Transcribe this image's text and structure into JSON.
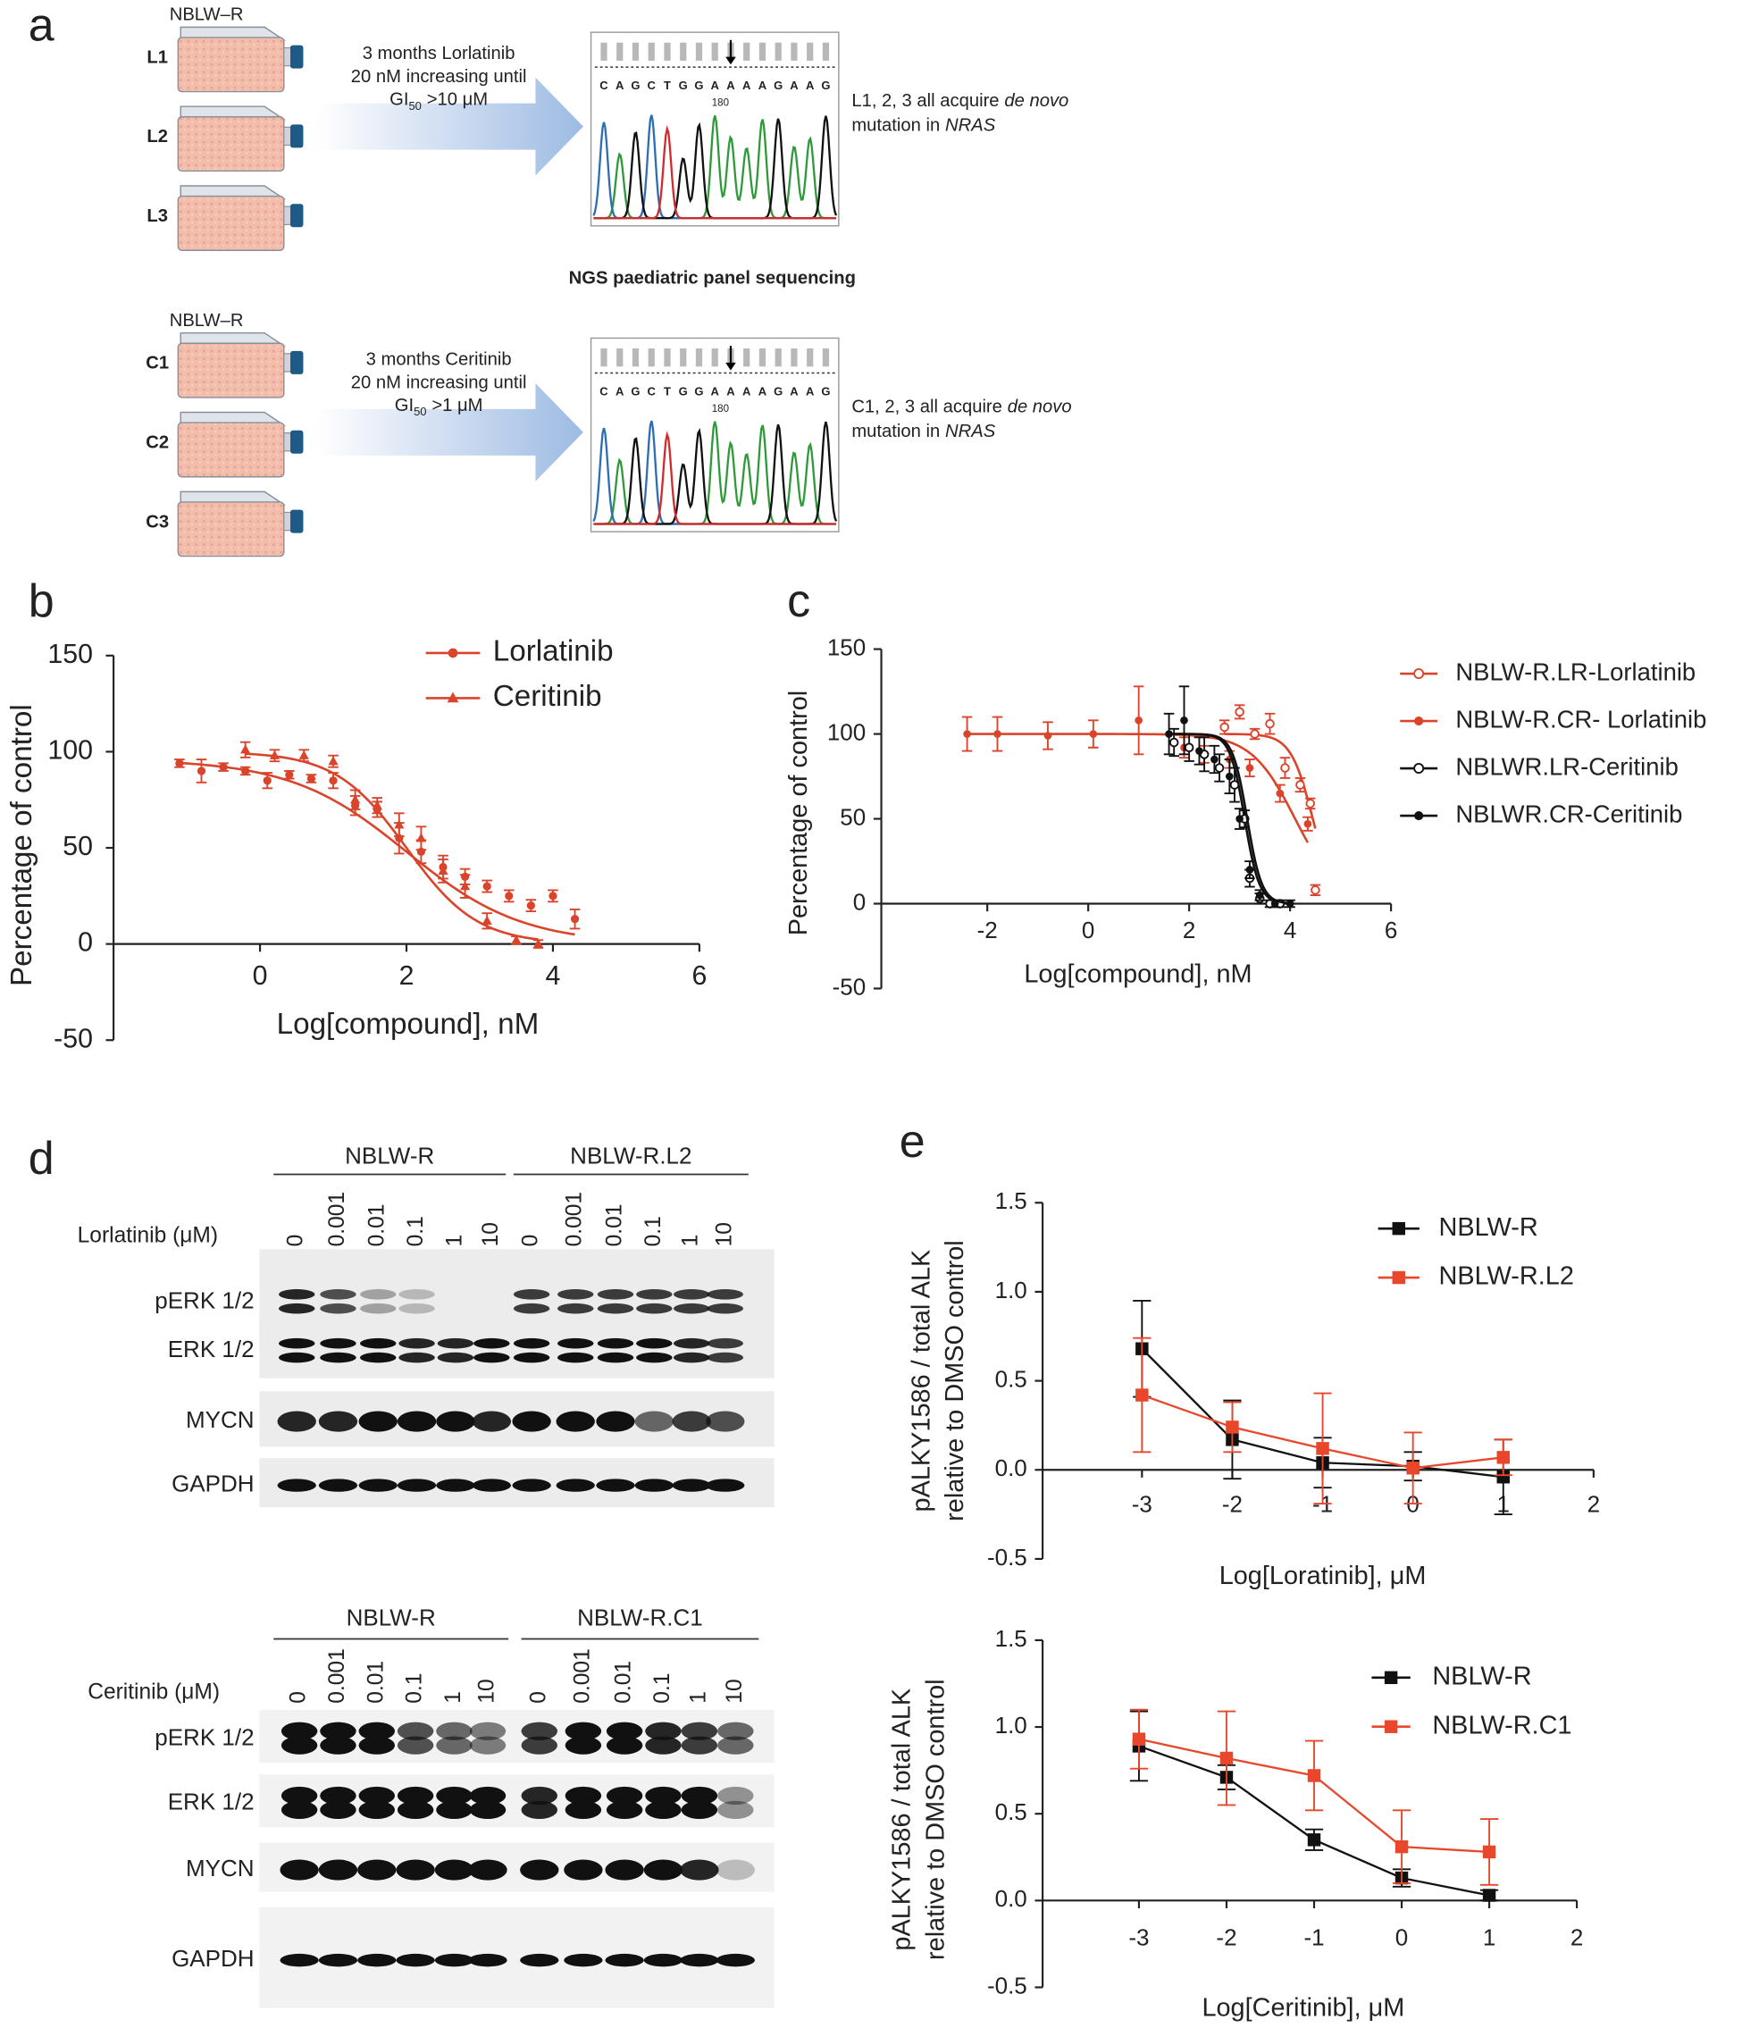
{
  "panel_labels": [
    "a",
    "b",
    "c",
    "d",
    "e"
  ],
  "panel_a": {
    "sequencing_title": "NGS paediatric panel sequencing",
    "rows": [
      {
        "cell_line": "NBLW–R",
        "flasks": [
          "L1",
          "L2",
          "L3"
        ],
        "treatment": [
          "3 months Lorlatinib",
          "20 nM increasing until"
        ],
        "gi": {
          "text": "GI",
          "subscript": "50",
          "threshold": ">10 μM"
        },
        "sequence": [
          "C",
          "A",
          "G",
          "C",
          "T",
          "G",
          "G",
          "A",
          "A",
          "A",
          "A",
          "G",
          "A",
          "A",
          "G"
        ],
        "position_label": "180",
        "result": [
          [
            "L1, 2, 3 all acquire",
            "de novo"
          ],
          [
            "mutation in",
            "NRAS"
          ]
        ]
      },
      {
        "cell_line": "NBLW–R",
        "flasks": [
          "C1",
          "C2",
          "C3"
        ],
        "treatment": [
          "3 months Ceritinib",
          "20 nM increasing until"
        ],
        "gi": {
          "text": "GI",
          "subscript": "50",
          "threshold": ">1 μM"
        },
        "sequence": [
          "C",
          "A",
          "G",
          "C",
          "T",
          "G",
          "G",
          "A",
          "A",
          "A",
          "A",
          "G",
          "A",
          "A",
          "G"
        ],
        "position_label": "180",
        "result": [
          [
            "C1, 2, 3 all acquire",
            "de novo"
          ],
          [
            "mutation in",
            "NRAS"
          ]
        ]
      }
    ]
  },
  "chart_data": [
    {
      "type": "dose-response",
      "xlabel": "Log[compound], nM",
      "ylabel": [
        "Percentage of control"
      ],
      "xlim": [
        -2,
        6
      ],
      "ylim": [
        -50,
        150
      ],
      "xticks": [
        0,
        2,
        4,
        6
      ],
      "yticks": [
        -50,
        0,
        50,
        100,
        150
      ],
      "series": [
        {
          "name": "Lorlatinib",
          "color": "#d9442b",
          "marker": "circle",
          "x": [
            -1.1,
            -0.8,
            -0.5,
            -0.2,
            0.1,
            0.4,
            0.7,
            1.0,
            1.3,
            1.6,
            1.9,
            2.2,
            2.5,
            2.8,
            3.1,
            3.4,
            3.7,
            4.0,
            4.3
          ],
          "values": [
            94,
            90,
            92,
            90,
            85,
            88,
            86,
            85,
            72,
            70,
            55,
            48,
            40,
            35,
            30,
            25,
            20,
            25,
            13
          ],
          "errors": [
            2,
            6,
            2,
            2,
            4,
            2,
            2,
            4,
            5,
            4,
            8,
            6,
            6,
            4,
            3,
            3,
            3,
            3,
            5
          ],
          "fit": {
            "top": 96,
            "bottom": 0,
            "logic50": 2.0,
            "hill": 0.55
          }
        },
        {
          "name": "Ceritinib",
          "color": "#d9442b",
          "marker": "triangle",
          "x": [
            -0.2,
            0.2,
            0.6,
            1.0,
            1.3,
            1.6,
            1.9,
            2.2,
            2.5,
            2.8,
            3.1,
            3.5,
            3.8
          ],
          "values": [
            101,
            98,
            98,
            95,
            75,
            72,
            62,
            55,
            38,
            30,
            12,
            2,
            0
          ],
          "errors": [
            4,
            3,
            3,
            3,
            5,
            4,
            6,
            6,
            6,
            6,
            4,
            2,
            2
          ],
          "fit": {
            "top": 100,
            "bottom": 0,
            "logic50": 2.0,
            "hill": 0.9
          }
        }
      ]
    },
    {
      "type": "dose-response",
      "xlabel": "Log[compound], nM",
      "ylabel": [
        "Percentage of control"
      ],
      "xlim": [
        -4.1,
        6
      ],
      "ylim": [
        -50,
        150
      ],
      "xticks": [
        -2,
        0,
        2,
        4,
        6
      ],
      "yticks": [
        -50,
        0,
        50,
        100,
        150
      ],
      "series": [
        {
          "name": "NBLW-R.LR-Lorlatinib",
          "color": "#d9442b",
          "marker": "open-circle",
          "x": [
            2.7,
            3.0,
            3.3,
            3.6,
            3.9,
            4.2,
            4.4,
            4.5
          ],
          "values": [
            104,
            113,
            100,
            106,
            80,
            70,
            59,
            8
          ],
          "errors": [
            4,
            4,
            3,
            6,
            6,
            4,
            3,
            3
          ],
          "fit": {
            "top": 100,
            "bottom": 0,
            "logic50": 4.45,
            "hill": 2.0
          }
        },
        {
          "name": "NBLW-R.CR- Lorlatinib",
          "color": "#d9442b",
          "marker": "circle",
          "x": [
            -2.4,
            -1.8,
            -0.8,
            0.1,
            1.0,
            1.9,
            2.3,
            2.8,
            3.2,
            3.8,
            4.35
          ],
          "values": [
            100,
            100,
            99,
            100,
            108,
            92,
            88,
            85,
            80,
            65,
            47
          ],
          "errors": [
            10,
            10,
            8,
            8,
            20,
            6,
            5,
            5,
            5,
            5,
            4
          ],
          "fit": {
            "top": 100,
            "bottom": 0,
            "logic50": 4.1,
            "hill": 1.0
          }
        },
        {
          "name": "NBLWR.LR-Ceritinib",
          "color": "#111111",
          "marker": "open-circle",
          "x": [
            1.7,
            2.0,
            2.3,
            2.6,
            2.9,
            3.1,
            3.2,
            3.4,
            3.6,
            3.8
          ],
          "values": [
            95,
            92,
            88,
            80,
            70,
            50,
            15,
            3,
            0,
            0
          ],
          "errors": [
            8,
            8,
            10,
            8,
            10,
            5,
            5,
            3,
            2,
            2
          ],
          "fit": {
            "top": 100,
            "bottom": 0,
            "logic50": 3.1,
            "hill": 3.0
          }
        },
        {
          "name": "NBLWR.CR-Ceritinib",
          "color": "#111111",
          "marker": "circle",
          "x": [
            1.6,
            1.9,
            2.2,
            2.5,
            2.8,
            3.0,
            3.2,
            3.4,
            3.7,
            4.0
          ],
          "values": [
            100,
            108,
            90,
            85,
            75,
            50,
            20,
            5,
            0,
            0
          ],
          "errors": [
            12,
            20,
            8,
            8,
            10,
            6,
            5,
            3,
            2,
            2
          ],
          "fit": {
            "top": 100,
            "bottom": 0,
            "logic50": 3.15,
            "hill": 3.0
          }
        }
      ]
    },
    {
      "type": "line",
      "xlabel": "Log[Loratinib], μM",
      "ylabel": [
        "pALKY1586 / total ALK",
        "relative to DMSO control"
      ],
      "xlim": [
        -4.1,
        2
      ],
      "ylim": [
        -0.5,
        1.5
      ],
      "xticks": [
        -3,
        -2,
        -1,
        0,
        1,
        2
      ],
      "yticks": [
        {
          "value": -0.5,
          "label": "-0.5"
        },
        {
          "value": 0,
          "label": "0.0"
        },
        {
          "value": 0.5,
          "label": "0.5"
        },
        {
          "value": 1,
          "label": "1.0"
        },
        {
          "value": 1.5,
          "label": "1.5"
        }
      ],
      "series": [
        {
          "name": "NBLW-R",
          "color": "#111111",
          "marker": "square",
          "x": [
            -3,
            -2,
            -1,
            0,
            1
          ],
          "values": [
            0.68,
            0.17,
            0.04,
            0.02,
            -0.04
          ],
          "errors": [
            0.27,
            0.22,
            0.14,
            0.08,
            0.21
          ]
        },
        {
          "name": "NBLW-R.L2",
          "color": "#e8472b",
          "marker": "square",
          "x": [
            -3,
            -2,
            -1,
            0,
            1
          ],
          "values": [
            0.42,
            0.24,
            0.12,
            0.01,
            0.07
          ],
          "errors": [
            0.32,
            0.14,
            0.31,
            0.2,
            0.1
          ]
        }
      ]
    },
    {
      "type": "line",
      "xlabel": "Log[Ceritinib], μM",
      "ylabel": [
        "pALKY1586 / total ALK",
        "relative to DMSO control"
      ],
      "xlim": [
        -4.1,
        2
      ],
      "ylim": [
        -0.5,
        1.5
      ],
      "xticks": [
        -3,
        -2,
        -1,
        0,
        1,
        2
      ],
      "yticks": [
        {
          "value": -0.5,
          "label": "-0.5"
        },
        {
          "value": 0,
          "label": "0.0"
        },
        {
          "value": 0.5,
          "label": "0.5"
        },
        {
          "value": 1,
          "label": "1.0"
        },
        {
          "value": 1.5,
          "label": "1.5"
        }
      ],
      "series": [
        {
          "name": "NBLW-R",
          "color": "#111111",
          "marker": "square",
          "x": [
            -3,
            -2,
            -1,
            0,
            1
          ],
          "values": [
            0.89,
            0.71,
            0.35,
            0.13,
            0.03
          ],
          "errors": [
            0.2,
            0.07,
            0.06,
            0.05,
            0.03
          ]
        },
        {
          "name": "NBLW-R.C1",
          "color": "#e8472b",
          "marker": "square",
          "x": [
            -3,
            -2,
            -1,
            0,
            1
          ],
          "values": [
            0.93,
            0.82,
            0.72,
            0.31,
            0.28
          ],
          "errors": [
            0.17,
            0.27,
            0.2,
            0.21,
            0.19
          ]
        }
      ]
    }
  ],
  "panel_d": {
    "blots": [
      {
        "groups": [
          "NBLW-R",
          "NBLW-R.L2"
        ],
        "treatment": "Lorlatinib (μM)",
        "concentrations": [
          "0",
          "0.001",
          "0.01",
          "0.1",
          "1",
          "10"
        ],
        "rows": [
          "pERK 1/2",
          "ERK 1/2",
          "MYCN",
          "GAPDH"
        ]
      },
      {
        "groups": [
          "NBLW-R",
          "NBLW-R.C1"
        ],
        "treatment": "Ceritinib (μM)",
        "concentrations": [
          "0",
          "0.001",
          "0.01",
          "0.1",
          "1",
          "10"
        ],
        "rows": [
          "pERK 1/2",
          "ERK 1/2",
          "MYCN",
          "GAPDH"
        ]
      }
    ]
  }
}
